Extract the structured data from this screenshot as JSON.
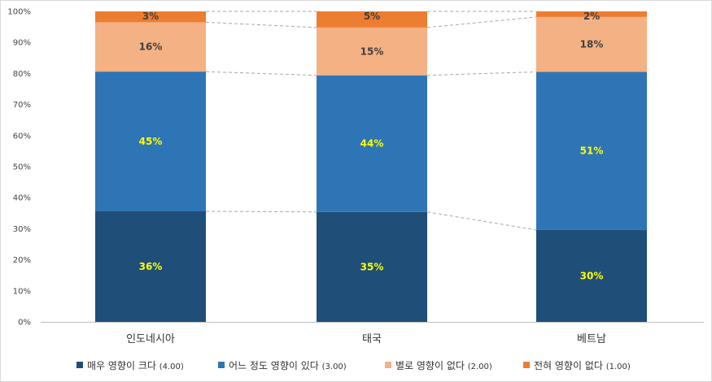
{
  "chart_data": {
    "type": "bar",
    "stacked": true,
    "categories": [
      "인도네시아",
      "태국",
      "베트남"
    ],
    "ylim": [
      0,
      100
    ],
    "yticks": [
      "0%",
      "10%",
      "20%",
      "30%",
      "40%",
      "50%",
      "60%",
      "70%",
      "80%",
      "90%",
      "100%"
    ],
    "series": [
      {
        "name": "매우 영향이 크다",
        "score": "(4.00)",
        "values": [
          35.6,
          35.4,
          29.6
        ],
        "labels": [
          "36%",
          "35%",
          "30%"
        ],
        "color": "#1f4e79",
        "label_color": "#ffff00"
      },
      {
        "name": "어느 정도 영향이 있다",
        "score": "(3.00)",
        "values": [
          45.0,
          44.0,
          50.9
        ],
        "labels": [
          "45%",
          "44%",
          "51%"
        ],
        "color": "#2e75b6",
        "label_color": "#ffff00"
      },
      {
        "name": "별로 영향이 없다",
        "score": "(2.00)",
        "values": [
          15.9,
          15.4,
          17.7
        ],
        "labels": [
          "16%",
          "15%",
          "18%"
        ],
        "color": "#f4b183",
        "label_color": "#404040"
      },
      {
        "name": "전혀 영향이 없다",
        "score": "(1.00)",
        "values": [
          3.5,
          5.2,
          1.8
        ],
        "labels": [
          "3%",
          "5%",
          "2%"
        ],
        "color": "#ed7d31",
        "label_color": "#404040"
      }
    ],
    "series_lines": true,
    "grid": false,
    "legend": "bottom"
  }
}
